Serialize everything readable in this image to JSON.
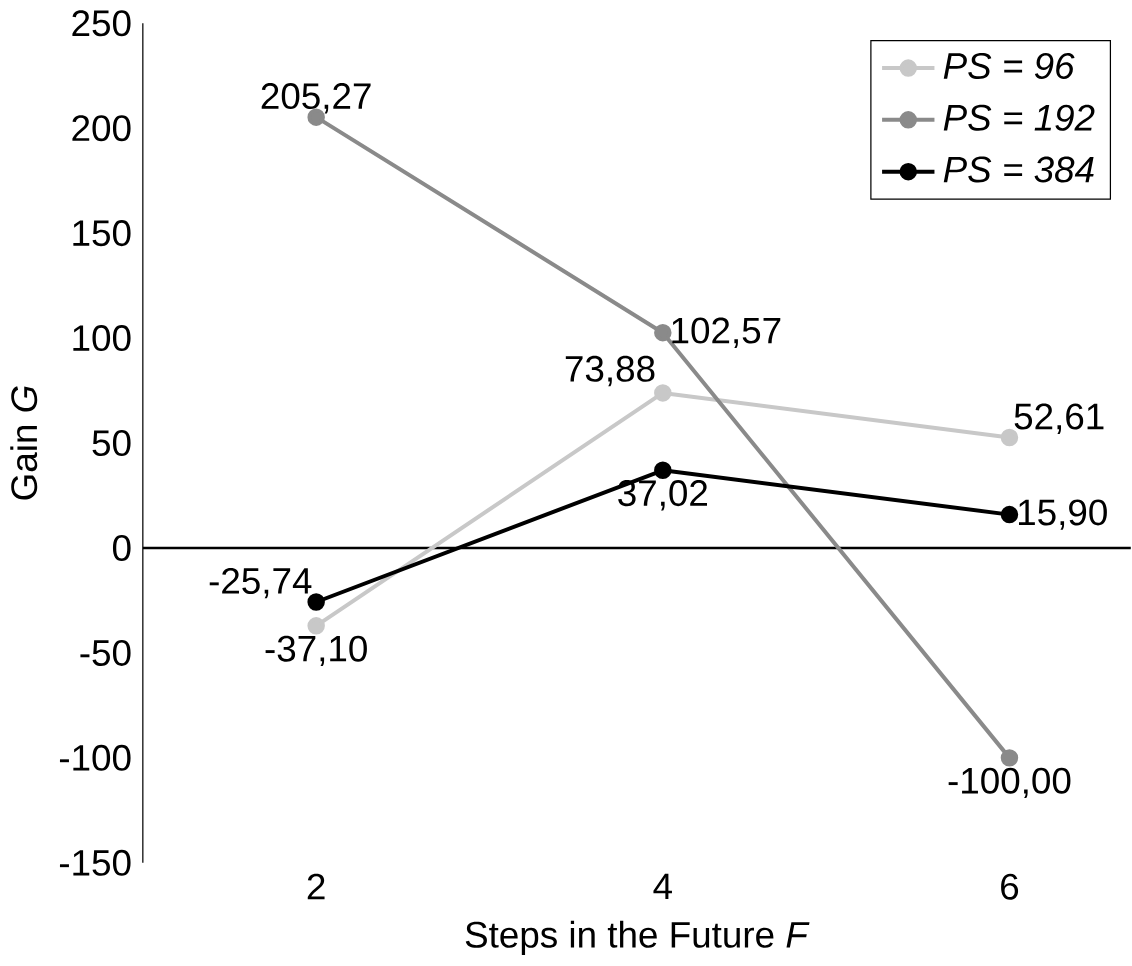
{
  "chart_data": {
    "type": "line",
    "xlabel": "Steps in the Future *F*",
    "ylabel": "Gain *G*",
    "categories": [
      "2",
      "4",
      "6"
    ],
    "ylim": [
      -150,
      250
    ],
    "yticks": [
      -150,
      -100,
      -50,
      0,
      50,
      100,
      150,
      200,
      250
    ],
    "marker": "circle",
    "legend": "top right",
    "series": [
      {
        "name": "PS = 96",
        "color": "#c8c8c8",
        "values": [
          -37.1,
          73.88,
          52.61
        ],
        "value_labels": [
          "-37,10",
          "73,88",
          "52,61"
        ]
      },
      {
        "name": "PS = 192",
        "color": "#8a8a8a",
        "values": [
          205.27,
          102.57,
          -100.0
        ],
        "value_labels": [
          "205,27",
          "102,57",
          "-100,00"
        ]
      },
      {
        "name": "PS = 384",
        "color": "#000000",
        "values": [
          -25.74,
          37.02,
          15.9
        ],
        "value_labels": [
          "-25,74",
          "37,02",
          "15,90"
        ]
      }
    ]
  }
}
